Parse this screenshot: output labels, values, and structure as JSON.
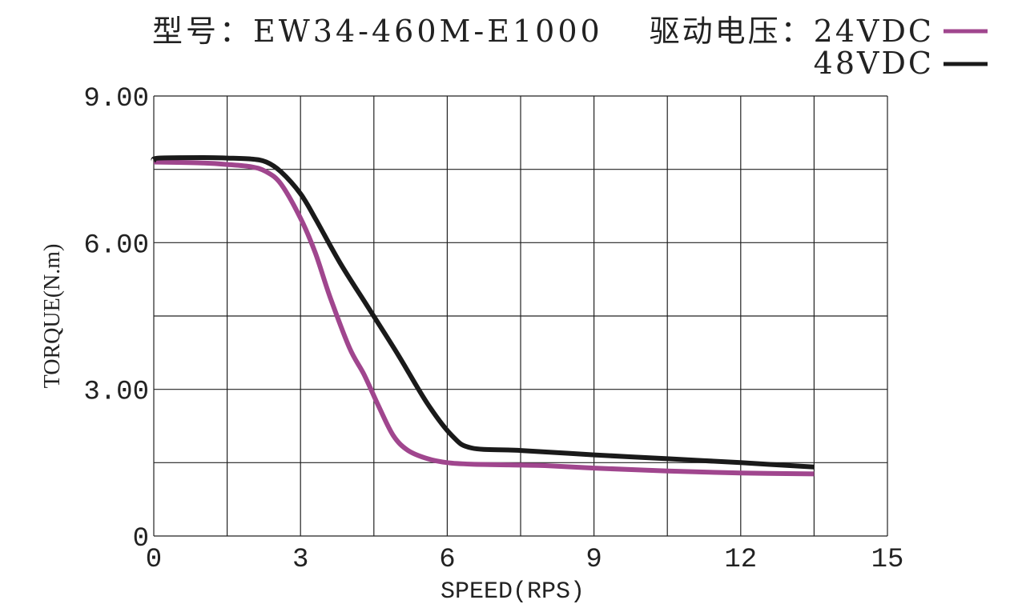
{
  "header": {
    "model": "型号：EW34-460M-E1000",
    "voltage_label": "驱动电压：24VDC",
    "second_voltage": "48VDC"
  },
  "chart_data": {
    "type": "line",
    "xlabel": "SPEED(RPS)",
    "ylabel": "TORQUE(N.m)",
    "xlim": [
      0,
      15
    ],
    "ylim": [
      0,
      9
    ],
    "x_tick_labels": [
      "0",
      "3",
      "6",
      "9",
      "12",
      "15"
    ],
    "y_tick_labels": [
      "0",
      "3.00",
      "6.00",
      "9.00"
    ],
    "x_grid_step": 1.5,
    "y_grid_step": 1.5,
    "grid": true,
    "legend_position": "top-right",
    "series": [
      {
        "name": "24VDC",
        "color": "#a0468e",
        "points": [
          [
            0,
            7.65
          ],
          [
            1.0,
            7.63
          ],
          [
            1.5,
            7.6
          ],
          [
            2.0,
            7.55
          ],
          [
            2.3,
            7.45
          ],
          [
            2.6,
            7.2
          ],
          [
            3.0,
            6.5
          ],
          [
            3.3,
            5.8
          ],
          [
            3.6,
            4.9
          ],
          [
            4.0,
            3.85
          ],
          [
            4.3,
            3.3
          ],
          [
            4.6,
            2.65
          ],
          [
            4.9,
            2.05
          ],
          [
            5.2,
            1.75
          ],
          [
            5.6,
            1.58
          ],
          [
            6.0,
            1.5
          ],
          [
            6.5,
            1.47
          ],
          [
            7.5,
            1.45
          ],
          [
            8.0,
            1.44
          ],
          [
            9.0,
            1.39
          ],
          [
            10.5,
            1.33
          ],
          [
            12.0,
            1.29
          ],
          [
            13.5,
            1.27
          ]
        ]
      },
      {
        "name": "48VDC",
        "color": "#1a1a1a",
        "points": [
          [
            0,
            7.68
          ],
          [
            0.1,
            7.73
          ],
          [
            1.0,
            7.74
          ],
          [
            1.5,
            7.73
          ],
          [
            2.0,
            7.71
          ],
          [
            2.3,
            7.65
          ],
          [
            2.6,
            7.45
          ],
          [
            3.0,
            7.0
          ],
          [
            3.3,
            6.5
          ],
          [
            3.8,
            5.6
          ],
          [
            4.4,
            4.65
          ],
          [
            5.0,
            3.7
          ],
          [
            5.6,
            2.7
          ],
          [
            6.1,
            2.05
          ],
          [
            6.5,
            1.8
          ],
          [
            7.5,
            1.75
          ],
          [
            9.0,
            1.66
          ],
          [
            10.5,
            1.58
          ],
          [
            12.0,
            1.5
          ],
          [
            13.5,
            1.41
          ]
        ]
      }
    ]
  }
}
